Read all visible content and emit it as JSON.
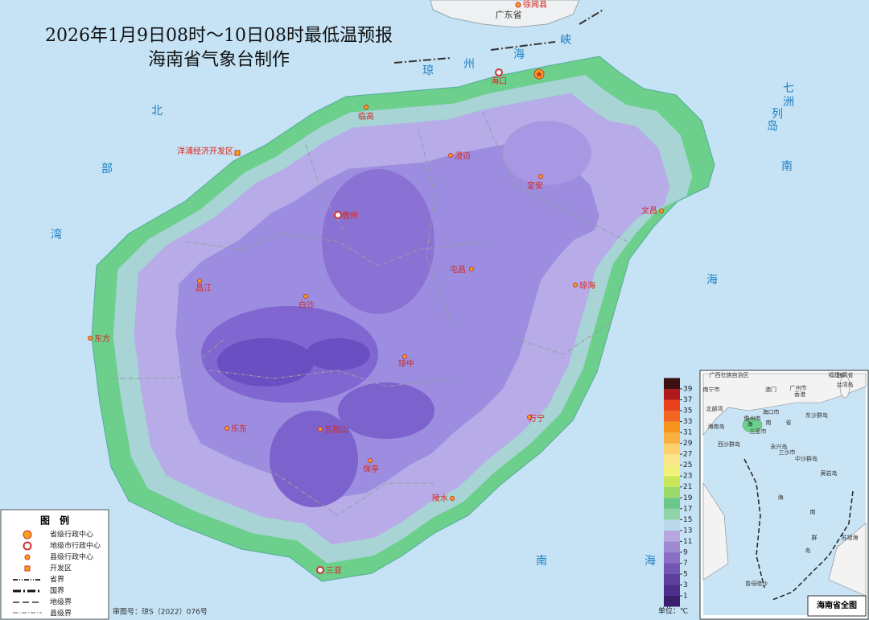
{
  "title": "2026年1月9日08时～10日08时最低温预报",
  "subtitle": "海南省气象台制作",
  "map": {
    "land_labels": [
      "广东省",
      "徐闻县"
    ],
    "sea_labels": [
      "北",
      "部",
      "湾",
      "琼",
      "州",
      "海",
      "峡",
      "南",
      "海",
      "南",
      "海",
      "七",
      "洲",
      "列",
      "岛"
    ],
    "cities": [
      "海口",
      "临高",
      "澄迈",
      "定安",
      "文昌",
      "儋州",
      "屯昌",
      "琼海",
      "昌江",
      "白沙",
      "东方",
      "琼中",
      "乐东",
      "五指山",
      "万宁",
      "保亭",
      "陵水",
      "三亚",
      "洋浦经济开发区"
    ]
  },
  "legend": {
    "title": "图　例",
    "items": [
      "省级行政中心",
      "地级市行政中心",
      "县级行政中心",
      "开发区",
      "省界",
      "国界",
      "地级界",
      "县级界"
    ]
  },
  "approval": "审图号：琼S（2022）076号",
  "colorbar": {
    "ticks": [
      1,
      3,
      5,
      7,
      9,
      11,
      13,
      15,
      17,
      19,
      21,
      23,
      25,
      27,
      29,
      31,
      33,
      35,
      37,
      39
    ],
    "colors": [
      "#3b1f6e",
      "#4b2d8a",
      "#5e3fa0",
      "#7355b3",
      "#8a6fc4",
      "#a08ad2",
      "#b7a6df",
      "#b9d8ec",
      "#8fd3a8",
      "#6cc78a",
      "#9ad96a",
      "#c8e85a",
      "#f2f27a",
      "#fde68a",
      "#fdd06b",
      "#fbb040",
      "#f7941d",
      "#f26522",
      "#e8411b",
      "#b01a1a",
      "#3a1010"
    ],
    "unit": "单位：℃"
  },
  "inset": {
    "title": "海南省全图",
    "labels": [
      "广西壮族自治区",
      "南宁市",
      "广州市",
      "香港",
      "澳门",
      "海口市",
      "福建省",
      "台湾省",
      "台湾岛",
      "北部湾",
      "海南岛",
      "儋州市",
      "三亚市",
      "海",
      "南",
      "省",
      "东沙群岛",
      "西沙群岛",
      "永兴岛",
      "三沙市",
      "中沙群岛",
      "黄岩岛",
      "海",
      "南",
      "群",
      "岛",
      "苏禄海",
      "曾母暗沙"
    ]
  }
}
